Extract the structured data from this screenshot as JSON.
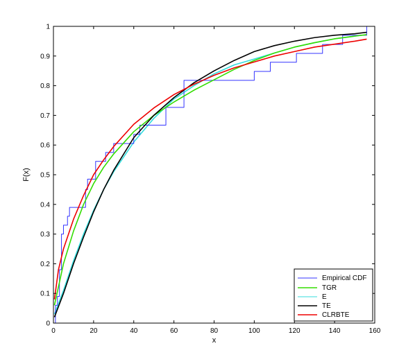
{
  "chart_data": {
    "type": "line",
    "title": "",
    "xlabel": "x",
    "ylabel": "F(x)",
    "xlim": [
      0,
      160
    ],
    "ylim": [
      0,
      1
    ],
    "xticks": [
      "0",
      "20",
      "40",
      "60",
      "80",
      "100",
      "120",
      "140",
      "160"
    ],
    "yticks": [
      "0",
      "0.1",
      "0.2",
      "0.3",
      "0.4",
      "0.5",
      "0.6",
      "0.7",
      "0.8",
      "0.9",
      "1"
    ],
    "grid": false,
    "legend_position": "bottom-right",
    "series": [
      {
        "name": "Empirical CDF",
        "color": "#3333ff",
        "style": "step",
        "points": [
          [
            0,
            0
          ],
          [
            1,
            0
          ],
          [
            1,
            0.06
          ],
          [
            2,
            0.06
          ],
          [
            2,
            0.09
          ],
          [
            3,
            0.09
          ],
          [
            3,
            0.18
          ],
          [
            4,
            0.18
          ],
          [
            4,
            0.3
          ],
          [
            5,
            0.3
          ],
          [
            5,
            0.33
          ],
          [
            7,
            0.33
          ],
          [
            7,
            0.36
          ],
          [
            8,
            0.36
          ],
          [
            8,
            0.39
          ],
          [
            16,
            0.39
          ],
          [
            16,
            0.45
          ],
          [
            17,
            0.45
          ],
          [
            17,
            0.485
          ],
          [
            21,
            0.485
          ],
          [
            21,
            0.545
          ],
          [
            26,
            0.545
          ],
          [
            26,
            0.575
          ],
          [
            30,
            0.575
          ],
          [
            30,
            0.605
          ],
          [
            40,
            0.605
          ],
          [
            40,
            0.636
          ],
          [
            43,
            0.636
          ],
          [
            43,
            0.667
          ],
          [
            56,
            0.667
          ],
          [
            56,
            0.727
          ],
          [
            65,
            0.727
          ],
          [
            65,
            0.818
          ],
          [
            100,
            0.818
          ],
          [
            100,
            0.848
          ],
          [
            108,
            0.848
          ],
          [
            108,
            0.879
          ],
          [
            121,
            0.879
          ],
          [
            121,
            0.909
          ],
          [
            134,
            0.909
          ],
          [
            134,
            0.939
          ],
          [
            144,
            0.939
          ],
          [
            144,
            0.97
          ],
          [
            156,
            0.97
          ],
          [
            156,
            1
          ]
        ]
      },
      {
        "name": "TGR",
        "color": "#33dd00",
        "style": "line",
        "points": [
          [
            0.5,
            0.06
          ],
          [
            5,
            0.2
          ],
          [
            10,
            0.31
          ],
          [
            15,
            0.4
          ],
          [
            20,
            0.47
          ],
          [
            25,
            0.525
          ],
          [
            30,
            0.57
          ],
          [
            40,
            0.645
          ],
          [
            50,
            0.7
          ],
          [
            60,
            0.745
          ],
          [
            70,
            0.785
          ],
          [
            80,
            0.82
          ],
          [
            90,
            0.855
          ],
          [
            100,
            0.885
          ],
          [
            110,
            0.91
          ],
          [
            120,
            0.93
          ],
          [
            130,
            0.945
          ],
          [
            140,
            0.958
          ],
          [
            150,
            0.967
          ],
          [
            156,
            0.972
          ]
        ]
      },
      {
        "name": "E",
        "color": "#33dddd",
        "style": "line",
        "points": [
          [
            0.5,
            0.03
          ],
          [
            5,
            0.11
          ],
          [
            10,
            0.21
          ],
          [
            15,
            0.3
          ],
          [
            20,
            0.38
          ],
          [
            25,
            0.45
          ],
          [
            30,
            0.51
          ],
          [
            40,
            0.61
          ],
          [
            50,
            0.69
          ],
          [
            60,
            0.755
          ],
          [
            70,
            0.8
          ],
          [
            80,
            0.84
          ],
          [
            90,
            0.87
          ],
          [
            100,
            0.89
          ],
          [
            110,
            0.91
          ],
          [
            120,
            0.93
          ],
          [
            130,
            0.945
          ],
          [
            140,
            0.958
          ],
          [
            150,
            0.967
          ],
          [
            156,
            0.972
          ]
        ]
      },
      {
        "name": "TE",
        "color": "#000000",
        "style": "line",
        "points": [
          [
            0.5,
            0.02
          ],
          [
            5,
            0.1
          ],
          [
            10,
            0.2
          ],
          [
            15,
            0.29
          ],
          [
            20,
            0.375
          ],
          [
            25,
            0.45
          ],
          [
            30,
            0.515
          ],
          [
            40,
            0.625
          ],
          [
            50,
            0.7
          ],
          [
            60,
            0.76
          ],
          [
            70,
            0.81
          ],
          [
            80,
            0.85
          ],
          [
            90,
            0.885
          ],
          [
            100,
            0.915
          ],
          [
            110,
            0.935
          ],
          [
            120,
            0.95
          ],
          [
            130,
            0.962
          ],
          [
            140,
            0.97
          ],
          [
            150,
            0.975
          ],
          [
            156,
            0.98
          ]
        ]
      },
      {
        "name": "CLRBTE",
        "color": "#ee0000",
        "style": "line",
        "points": [
          [
            0.5,
            0.08
          ],
          [
            2.5,
            0.18
          ],
          [
            5,
            0.25
          ],
          [
            10,
            0.35
          ],
          [
            15,
            0.43
          ],
          [
            20,
            0.5
          ],
          [
            25,
            0.55
          ],
          [
            30,
            0.595
          ],
          [
            40,
            0.67
          ],
          [
            50,
            0.725
          ],
          [
            60,
            0.77
          ],
          [
            70,
            0.805
          ],
          [
            80,
            0.835
          ],
          [
            90,
            0.86
          ],
          [
            100,
            0.88
          ],
          [
            110,
            0.9
          ],
          [
            120,
            0.915
          ],
          [
            130,
            0.93
          ],
          [
            140,
            0.94
          ],
          [
            150,
            0.95
          ],
          [
            156,
            0.957
          ]
        ]
      }
    ]
  }
}
